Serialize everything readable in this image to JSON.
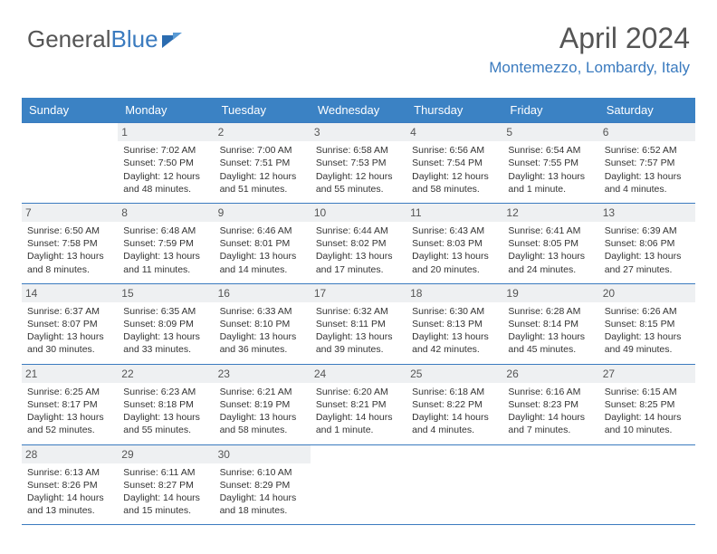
{
  "logo": {
    "part1": "General",
    "part2": "Blue"
  },
  "header": {
    "title": "April 2024",
    "location": "Montemezzo, Lombardy, Italy"
  },
  "weekdays": [
    "Sunday",
    "Monday",
    "Tuesday",
    "Wednesday",
    "Thursday",
    "Friday",
    "Saturday"
  ],
  "colors": {
    "header_bg": "#3b82c4",
    "header_text": "#ffffff",
    "accent": "#3b7bbf",
    "daynum_bg": "#eef0f2",
    "body_text": "#333333"
  },
  "weeks": [
    [
      {
        "n": "",
        "sr": "",
        "ss": "",
        "dl": ""
      },
      {
        "n": "1",
        "sr": "Sunrise: 7:02 AM",
        "ss": "Sunset: 7:50 PM",
        "dl": "Daylight: 12 hours and 48 minutes."
      },
      {
        "n": "2",
        "sr": "Sunrise: 7:00 AM",
        "ss": "Sunset: 7:51 PM",
        "dl": "Daylight: 12 hours and 51 minutes."
      },
      {
        "n": "3",
        "sr": "Sunrise: 6:58 AM",
        "ss": "Sunset: 7:53 PM",
        "dl": "Daylight: 12 hours and 55 minutes."
      },
      {
        "n": "4",
        "sr": "Sunrise: 6:56 AM",
        "ss": "Sunset: 7:54 PM",
        "dl": "Daylight: 12 hours and 58 minutes."
      },
      {
        "n": "5",
        "sr": "Sunrise: 6:54 AM",
        "ss": "Sunset: 7:55 PM",
        "dl": "Daylight: 13 hours and 1 minute."
      },
      {
        "n": "6",
        "sr": "Sunrise: 6:52 AM",
        "ss": "Sunset: 7:57 PM",
        "dl": "Daylight: 13 hours and 4 minutes."
      }
    ],
    [
      {
        "n": "7",
        "sr": "Sunrise: 6:50 AM",
        "ss": "Sunset: 7:58 PM",
        "dl": "Daylight: 13 hours and 8 minutes."
      },
      {
        "n": "8",
        "sr": "Sunrise: 6:48 AM",
        "ss": "Sunset: 7:59 PM",
        "dl": "Daylight: 13 hours and 11 minutes."
      },
      {
        "n": "9",
        "sr": "Sunrise: 6:46 AM",
        "ss": "Sunset: 8:01 PM",
        "dl": "Daylight: 13 hours and 14 minutes."
      },
      {
        "n": "10",
        "sr": "Sunrise: 6:44 AM",
        "ss": "Sunset: 8:02 PM",
        "dl": "Daylight: 13 hours and 17 minutes."
      },
      {
        "n": "11",
        "sr": "Sunrise: 6:43 AM",
        "ss": "Sunset: 8:03 PM",
        "dl": "Daylight: 13 hours and 20 minutes."
      },
      {
        "n": "12",
        "sr": "Sunrise: 6:41 AM",
        "ss": "Sunset: 8:05 PM",
        "dl": "Daylight: 13 hours and 24 minutes."
      },
      {
        "n": "13",
        "sr": "Sunrise: 6:39 AM",
        "ss": "Sunset: 8:06 PM",
        "dl": "Daylight: 13 hours and 27 minutes."
      }
    ],
    [
      {
        "n": "14",
        "sr": "Sunrise: 6:37 AM",
        "ss": "Sunset: 8:07 PM",
        "dl": "Daylight: 13 hours and 30 minutes."
      },
      {
        "n": "15",
        "sr": "Sunrise: 6:35 AM",
        "ss": "Sunset: 8:09 PM",
        "dl": "Daylight: 13 hours and 33 minutes."
      },
      {
        "n": "16",
        "sr": "Sunrise: 6:33 AM",
        "ss": "Sunset: 8:10 PM",
        "dl": "Daylight: 13 hours and 36 minutes."
      },
      {
        "n": "17",
        "sr": "Sunrise: 6:32 AM",
        "ss": "Sunset: 8:11 PM",
        "dl": "Daylight: 13 hours and 39 minutes."
      },
      {
        "n": "18",
        "sr": "Sunrise: 6:30 AM",
        "ss": "Sunset: 8:13 PM",
        "dl": "Daylight: 13 hours and 42 minutes."
      },
      {
        "n": "19",
        "sr": "Sunrise: 6:28 AM",
        "ss": "Sunset: 8:14 PM",
        "dl": "Daylight: 13 hours and 45 minutes."
      },
      {
        "n": "20",
        "sr": "Sunrise: 6:26 AM",
        "ss": "Sunset: 8:15 PM",
        "dl": "Daylight: 13 hours and 49 minutes."
      }
    ],
    [
      {
        "n": "21",
        "sr": "Sunrise: 6:25 AM",
        "ss": "Sunset: 8:17 PM",
        "dl": "Daylight: 13 hours and 52 minutes."
      },
      {
        "n": "22",
        "sr": "Sunrise: 6:23 AM",
        "ss": "Sunset: 8:18 PM",
        "dl": "Daylight: 13 hours and 55 minutes."
      },
      {
        "n": "23",
        "sr": "Sunrise: 6:21 AM",
        "ss": "Sunset: 8:19 PM",
        "dl": "Daylight: 13 hours and 58 minutes."
      },
      {
        "n": "24",
        "sr": "Sunrise: 6:20 AM",
        "ss": "Sunset: 8:21 PM",
        "dl": "Daylight: 14 hours and 1 minute."
      },
      {
        "n": "25",
        "sr": "Sunrise: 6:18 AM",
        "ss": "Sunset: 8:22 PM",
        "dl": "Daylight: 14 hours and 4 minutes."
      },
      {
        "n": "26",
        "sr": "Sunrise: 6:16 AM",
        "ss": "Sunset: 8:23 PM",
        "dl": "Daylight: 14 hours and 7 minutes."
      },
      {
        "n": "27",
        "sr": "Sunrise: 6:15 AM",
        "ss": "Sunset: 8:25 PM",
        "dl": "Daylight: 14 hours and 10 minutes."
      }
    ],
    [
      {
        "n": "28",
        "sr": "Sunrise: 6:13 AM",
        "ss": "Sunset: 8:26 PM",
        "dl": "Daylight: 14 hours and 13 minutes."
      },
      {
        "n": "29",
        "sr": "Sunrise: 6:11 AM",
        "ss": "Sunset: 8:27 PM",
        "dl": "Daylight: 14 hours and 15 minutes."
      },
      {
        "n": "30",
        "sr": "Sunrise: 6:10 AM",
        "ss": "Sunset: 8:29 PM",
        "dl": "Daylight: 14 hours and 18 minutes."
      },
      {
        "n": "",
        "sr": "",
        "ss": "",
        "dl": ""
      },
      {
        "n": "",
        "sr": "",
        "ss": "",
        "dl": ""
      },
      {
        "n": "",
        "sr": "",
        "ss": "",
        "dl": ""
      },
      {
        "n": "",
        "sr": "",
        "ss": "",
        "dl": ""
      }
    ]
  ]
}
